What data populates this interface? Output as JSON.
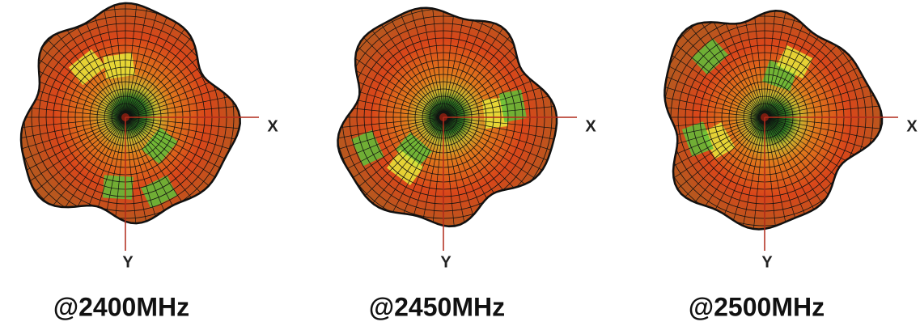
{
  "panels": [
    {
      "x_label": "X",
      "y_label": "Y",
      "caption": "@2400MHz"
    },
    {
      "x_label": "X",
      "y_label": "Y",
      "caption": "@2450MHz"
    },
    {
      "x_label": "X",
      "y_label": "Y",
      "caption": "@2500MHz"
    }
  ]
}
